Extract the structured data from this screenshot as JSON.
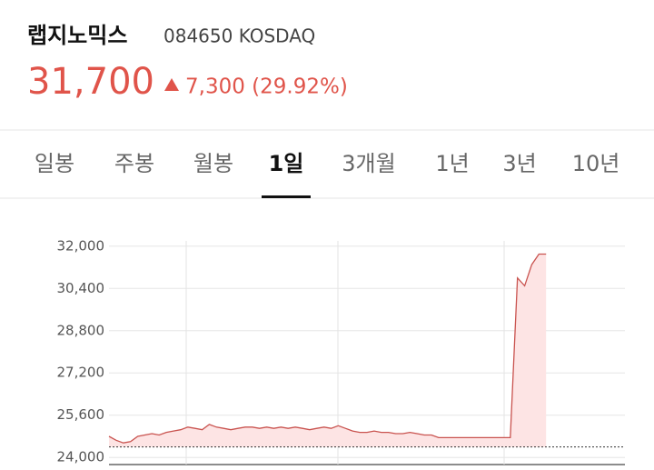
{
  "header": {
    "name": "랩지노믹스",
    "code": "084650 KOSDAQ",
    "price": "31,700",
    "change": "7,300 (29.92%)"
  },
  "tabs": [
    "일봉",
    "주봉",
    "월봉",
    "1일",
    "3개월",
    "1년",
    "3년",
    "10년"
  ],
  "selected_tab": 3,
  "chart_data": {
    "type": "line",
    "values": [
      24800,
      24650,
      24550,
      24600,
      24800,
      24850,
      24900,
      24850,
      24950,
      25000,
      25050,
      25150,
      25100,
      25050,
      25250,
      25150,
      25100,
      25050,
      25100,
      25150,
      25150,
      25100,
      25150,
      25100,
      25150,
      25100,
      25150,
      25100,
      25050,
      25100,
      25150,
      25100,
      25200,
      25100,
      25000,
      24950,
      24950,
      25000,
      24950,
      24950,
      24900,
      24900,
      24950,
      24900,
      24850,
      24850,
      24750,
      24750,
      24750,
      24750,
      24750,
      24750,
      24750,
      24750,
      24750,
      24750,
      24750,
      30800,
      30500,
      31300,
      31700,
      31700
    ],
    "color": "#c9534f",
    "fill": "#fde4e4",
    "baseline": 24400,
    "ylim": [
      23800,
      32200
    ],
    "yticks": [
      {
        "value": 24000,
        "label": "24,000"
      },
      {
        "value": 25600,
        "label": "25,600"
      },
      {
        "value": 27200,
        "label": "27,200"
      },
      {
        "value": 28800,
        "label": "28,800"
      },
      {
        "value": 30400,
        "label": "30,400"
      },
      {
        "value": 32000,
        "label": "32,000"
      }
    ],
    "grid": true
  }
}
